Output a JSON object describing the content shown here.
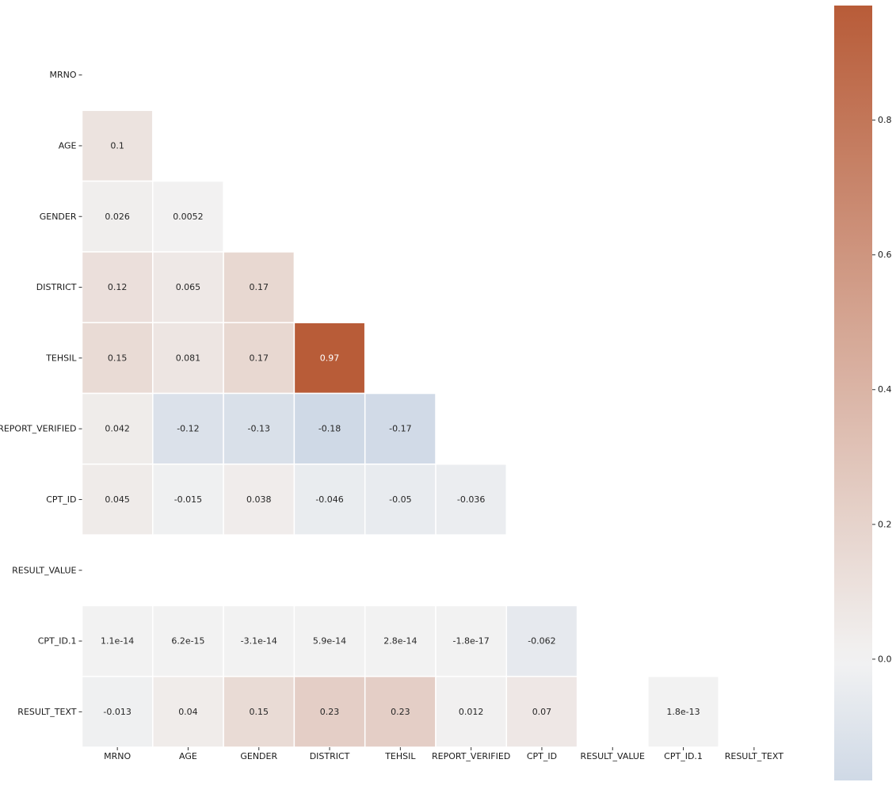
{
  "chart_data": {
    "type": "heatmap",
    "title": "",
    "xlabel": "",
    "ylabel": "",
    "mask": "upper-triangle-including-diagonal",
    "nan_cells": "RESULT_VALUE row and column are empty",
    "row_labels": [
      "MRNO",
      "AGE",
      "GENDER",
      "DISTRICT",
      "TEHSIL",
      "REPORT_VERIFIED",
      "CPT_ID",
      "RESULT_VALUE",
      "CPT_ID.1",
      "RESULT_TEXT"
    ],
    "col_labels": [
      "MRNO",
      "AGE",
      "GENDER",
      "DISTRICT",
      "TEHSIL",
      "REPORT_VERIFIED",
      "CPT_ID",
      "RESULT_VALUE",
      "CPT_ID.1",
      "RESULT_TEXT"
    ],
    "cells": [
      {
        "row": 1,
        "col": 0,
        "value": 0.1,
        "label": "0.1"
      },
      {
        "row": 2,
        "col": 0,
        "value": 0.026,
        "label": "0.026"
      },
      {
        "row": 2,
        "col": 1,
        "value": 0.0052,
        "label": "0.0052"
      },
      {
        "row": 3,
        "col": 0,
        "value": 0.12,
        "label": "0.12"
      },
      {
        "row": 3,
        "col": 1,
        "value": 0.065,
        "label": "0.065"
      },
      {
        "row": 3,
        "col": 2,
        "value": 0.17,
        "label": "0.17"
      },
      {
        "row": 4,
        "col": 0,
        "value": 0.15,
        "label": "0.15"
      },
      {
        "row": 4,
        "col": 1,
        "value": 0.081,
        "label": "0.081"
      },
      {
        "row": 4,
        "col": 2,
        "value": 0.17,
        "label": "0.17"
      },
      {
        "row": 4,
        "col": 3,
        "value": 0.97,
        "label": "0.97"
      },
      {
        "row": 5,
        "col": 0,
        "value": 0.042,
        "label": "0.042"
      },
      {
        "row": 5,
        "col": 1,
        "value": -0.12,
        "label": "-0.12"
      },
      {
        "row": 5,
        "col": 2,
        "value": -0.13,
        "label": "-0.13"
      },
      {
        "row": 5,
        "col": 3,
        "value": -0.18,
        "label": "-0.18"
      },
      {
        "row": 5,
        "col": 4,
        "value": -0.17,
        "label": "-0.17"
      },
      {
        "row": 6,
        "col": 0,
        "value": 0.045,
        "label": "0.045"
      },
      {
        "row": 6,
        "col": 1,
        "value": -0.015,
        "label": "-0.015"
      },
      {
        "row": 6,
        "col": 2,
        "value": 0.038,
        "label": "0.038"
      },
      {
        "row": 6,
        "col": 3,
        "value": -0.046,
        "label": "-0.046"
      },
      {
        "row": 6,
        "col": 4,
        "value": -0.05,
        "label": "-0.05"
      },
      {
        "row": 6,
        "col": 5,
        "value": -0.036,
        "label": "-0.036"
      },
      {
        "row": 8,
        "col": 0,
        "value": 1.1e-14,
        "label": "1.1e-14"
      },
      {
        "row": 8,
        "col": 1,
        "value": 6.2e-15,
        "label": "6.2e-15"
      },
      {
        "row": 8,
        "col": 2,
        "value": -3.1e-14,
        "label": "-3.1e-14"
      },
      {
        "row": 8,
        "col": 3,
        "value": 5.9e-14,
        "label": "5.9e-14"
      },
      {
        "row": 8,
        "col": 4,
        "value": 2.8e-14,
        "label": "2.8e-14"
      },
      {
        "row": 8,
        "col": 5,
        "value": -1.8e-17,
        "label": "-1.8e-17"
      },
      {
        "row": 8,
        "col": 6,
        "value": -0.062,
        "label": "-0.062"
      },
      {
        "row": 9,
        "col": 0,
        "value": -0.013,
        "label": "-0.013"
      },
      {
        "row": 9,
        "col": 1,
        "value": 0.04,
        "label": "0.04"
      },
      {
        "row": 9,
        "col": 2,
        "value": 0.15,
        "label": "0.15"
      },
      {
        "row": 9,
        "col": 3,
        "value": 0.23,
        "label": "0.23"
      },
      {
        "row": 9,
        "col": 4,
        "value": 0.23,
        "label": "0.23"
      },
      {
        "row": 9,
        "col": 5,
        "value": 0.012,
        "label": "0.012"
      },
      {
        "row": 9,
        "col": 6,
        "value": 0.07,
        "label": "0.07"
      },
      {
        "row": 9,
        "col": 8,
        "value": 1.8e-13,
        "label": "1.8e-13"
      }
    ],
    "colorbar": {
      "vmin": -0.18,
      "vmax": 0.97,
      "center": 0.0,
      "ticks": [
        0.0,
        0.2,
        0.4,
        0.6,
        0.8
      ],
      "tick_labels": [
        "0.0",
        "0.2",
        "0.4",
        "0.6",
        "0.8"
      ],
      "color_negative": "#cfd9e6",
      "color_center": "#f2f2f2",
      "color_positive": "#b85c38"
    },
    "grid_line_color": "#ffffff"
  }
}
